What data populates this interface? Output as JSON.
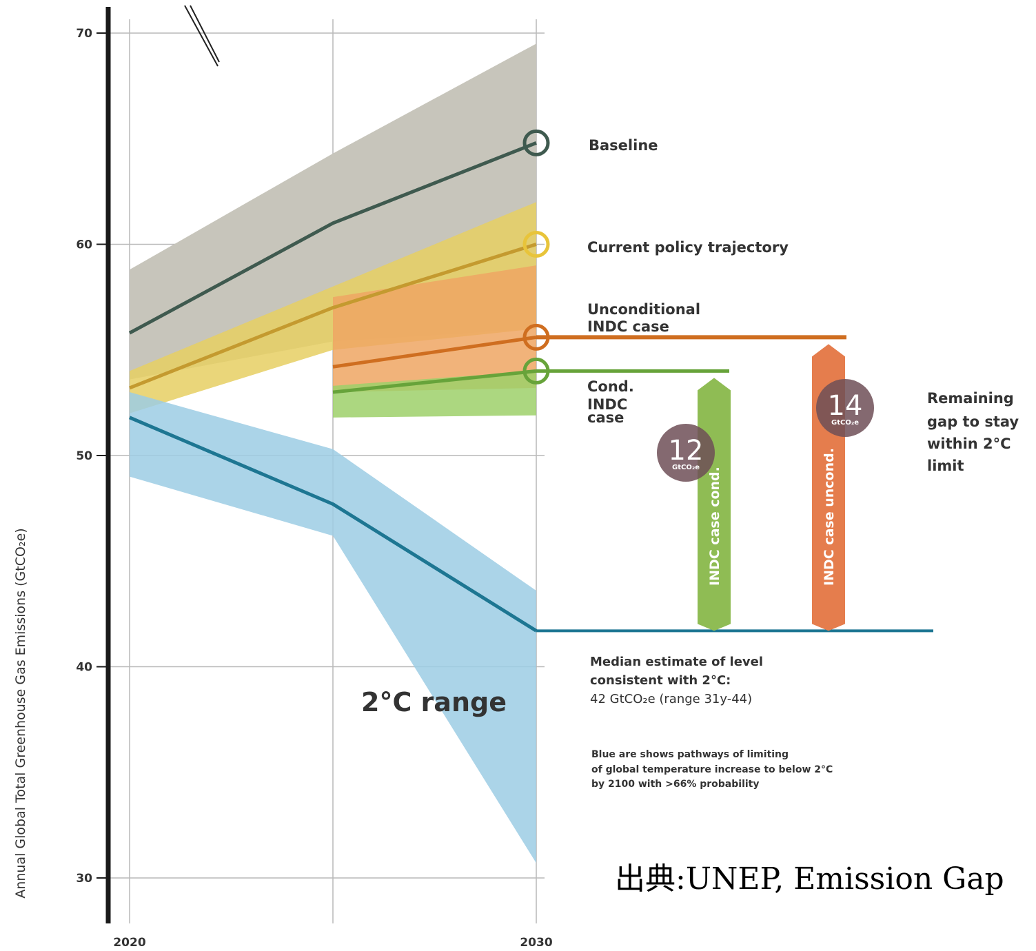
{
  "chart_data": {
    "type": "area",
    "ylabel": "Annual Global Total Greenhouse Gas Emissions (GtCO₂e)",
    "ylim": [
      28,
      72
    ],
    "yticks": [
      70,
      60,
      50,
      40,
      30
    ],
    "x_tick_labels": [
      "2020",
      "2030"
    ],
    "bands": [
      {
        "name": "Baseline",
        "color": "#c7c5bb",
        "x": [
          2020,
          2025,
          2030
        ],
        "upper": [
          58.8,
          64.3,
          69.5
        ],
        "lower": [
          53.6,
          55.4,
          56.0
        ]
      },
      {
        "name": "Current policy trajectory",
        "color": "#e6cf63",
        "x": [
          2020,
          2025,
          2030
        ],
        "upper": [
          54.0,
          58.0,
          62.0
        ],
        "lower": [
          52.0,
          55.0,
          56.0
        ]
      },
      {
        "name": "Unconditional INDC case",
        "color": "#efa663",
        "x": [
          2025,
          2030
        ],
        "upper": [
          57.5,
          59.0
        ],
        "lower": [
          53.0,
          53.2
        ]
      },
      {
        "name": "Cond. INDC case",
        "color": "#9dd06a",
        "x": [
          2025,
          2030
        ],
        "upper": [
          53.3,
          54.0
        ],
        "lower": [
          51.8,
          51.9
        ]
      },
      {
        "name": "2°C range",
        "color": "#9ccde4",
        "x": [
          2020,
          2025,
          2030
        ],
        "upper": [
          53.0,
          50.3,
          43.6
        ],
        "lower": [
          49.0,
          46.2,
          30.7
        ]
      }
    ],
    "series": [
      {
        "name": "Baseline",
        "color": "#3f5a4f",
        "x": [
          2020,
          2025,
          2030
        ],
        "values": [
          55.8,
          61.0,
          64.8
        ]
      },
      {
        "name": "Current policy trajectory",
        "color": "#c49a2f",
        "x": [
          2020,
          2025,
          2030
        ],
        "values": [
          53.2,
          57.0,
          60.0
        ]
      },
      {
        "name": "Unconditional INDC case",
        "color": "#cf6e20",
        "x": [
          2025,
          2030
        ],
        "values": [
          54.2,
          55.6
        ]
      },
      {
        "name": "Cond. INDC case",
        "color": "#67a33a",
        "x": [
          2025,
          2030
        ],
        "values": [
          53.0,
          54.0
        ]
      },
      {
        "name": "2°C median",
        "color": "#1d7692",
        "x": [
          2020,
          2025,
          2030
        ],
        "values": [
          51.8,
          47.7,
          41.7
        ]
      }
    ],
    "markers": [
      {
        "name": "Baseline",
        "value": 64.8,
        "color": "#3f5a4f"
      },
      {
        "name": "Current policy trajectory",
        "value": 60.0,
        "color": "#e8c43a"
      },
      {
        "name": "Unconditional INDC case",
        "value": 55.6,
        "color": "#cf6e20"
      },
      {
        "name": "Cond. INDC case",
        "value": 54.0,
        "color": "#67a33a"
      }
    ],
    "gap_bars": [
      {
        "label": "INDC case cond.",
        "top": 54.0,
        "bottom": 41.7,
        "color": "#8fbc54",
        "gap_value": "12",
        "gap_unit": "GtCO₂e"
      },
      {
        "label": "INDC case uncond.",
        "top": 55.6,
        "bottom": 41.7,
        "color": "#e57d4d",
        "gap_value": "14",
        "gap_unit": "GtCO₂e"
      }
    ],
    "median_level": 41.7,
    "labels": {
      "baseline": "Baseline",
      "current_policy": "Current policy trajectory",
      "uncond_1": "Unconditional",
      "uncond_2": "INDC case",
      "cond_1": "Cond.",
      "cond_2": "INDC",
      "cond_3": "case",
      "gap_1": "Remaining",
      "gap_2": "gap to stay",
      "gap_3": "within 2°C",
      "gap_4": "limit",
      "range": "2°C range",
      "median_1": "Median estimate of level",
      "median_2": "consistent with 2°C:",
      "median_3": "42 GtCO₂e (range 31y-44)",
      "blue_1": "Blue are shows pathways of limiting",
      "blue_2": "of global temperature increase to below 2°C",
      "blue_3": "by 2100 with >66% probability"
    }
  },
  "source": "出典:UNEP, Emission Gap"
}
